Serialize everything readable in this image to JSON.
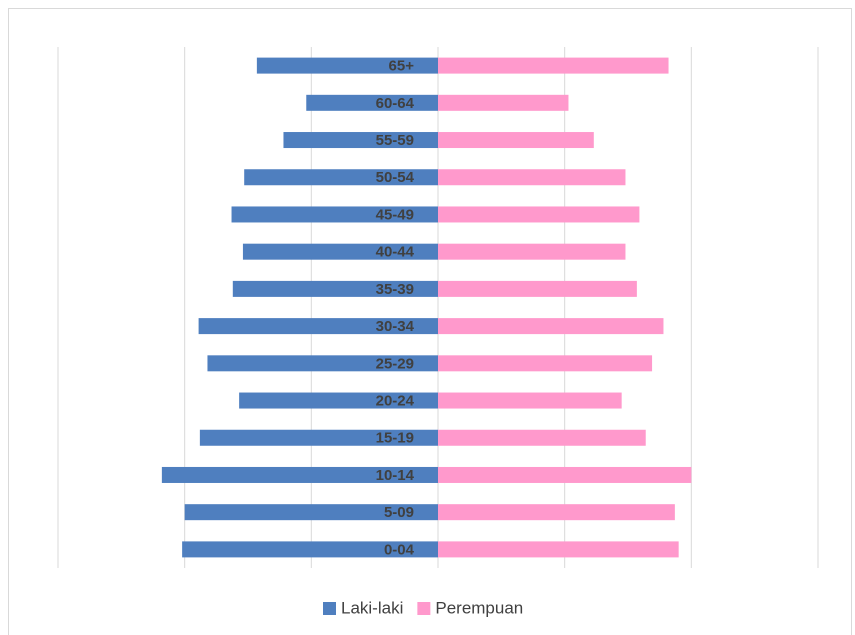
{
  "chart_data": {
    "type": "pyramid",
    "categories": [
      "0-04",
      "5-09",
      "10-14",
      "15-19",
      "20-24",
      "25-29",
      "30-34",
      "35-39",
      "40-44",
      "45-49",
      "50-54",
      "55-59",
      "60-64",
      "65+"
    ],
    "series": [
      {
        "name": "Laki-laki",
        "color": "#4f7fbf",
        "values": [
          -2.02,
          -2.0,
          -2.18,
          -1.88,
          -1.57,
          -1.82,
          -1.89,
          -1.62,
          -1.54,
          -1.63,
          -1.53,
          -1.22,
          -1.04,
          -1.43
        ]
      },
      {
        "name": "Perempuan",
        "color": "#ff99cc",
        "values": [
          1.9,
          1.87,
          2.0,
          1.64,
          1.45,
          1.69,
          1.78,
          1.57,
          1.48,
          1.59,
          1.48,
          1.23,
          1.03,
          1.82
        ]
      }
    ],
    "xlim": [
      -3,
      3
    ],
    "xticks": [
      -3,
      -2,
      -1,
      0,
      1,
      2,
      3
    ],
    "grid": true,
    "legend": "bottom"
  }
}
